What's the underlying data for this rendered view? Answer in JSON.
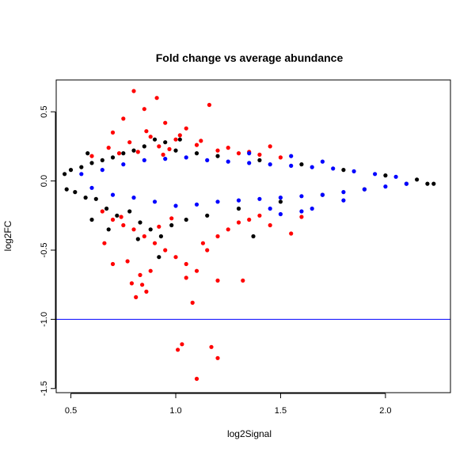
{
  "chart_data": {
    "type": "scatter",
    "title": "Fold change vs average abundance",
    "xlabel": "log2Signal",
    "ylabel": "log2FC",
    "xlim": [
      0.43,
      2.31
    ],
    "ylim": [
      -1.53,
      0.73
    ],
    "xticks": [
      0.5,
      1.0,
      1.5,
      2.0
    ],
    "yticks": [
      -1.5,
      -1.0,
      -0.5,
      0.0,
      0.5
    ],
    "xtick_labels": [
      "0.5",
      "1.0",
      "1.5",
      "2.0"
    ],
    "ytick_labels": [
      "-1.5",
      "-1.0",
      "-0.5",
      "0.0",
      "0.5"
    ],
    "grid": false,
    "legend": "none",
    "reference_line": {
      "y": -1.0,
      "color": "#0000ff"
    },
    "colors": {
      "black": "#000000",
      "blue": "#0000ff",
      "red": "#ff0000"
    },
    "series": [
      {
        "color": "black",
        "points": [
          [
            0.47,
            0.05
          ],
          [
            0.48,
            -0.06
          ],
          [
            0.5,
            0.08
          ],
          [
            0.52,
            -0.08
          ],
          [
            0.55,
            0.1
          ],
          [
            0.57,
            -0.12
          ],
          [
            0.6,
            0.13
          ],
          [
            0.62,
            -0.13
          ],
          [
            0.65,
            0.15
          ],
          [
            0.67,
            -0.2
          ],
          [
            0.7,
            0.17
          ],
          [
            0.72,
            -0.25
          ],
          [
            0.75,
            0.2
          ],
          [
            0.78,
            -0.22
          ],
          [
            0.8,
            0.22
          ],
          [
            0.83,
            -0.3
          ],
          [
            0.85,
            0.25
          ],
          [
            0.88,
            -0.35
          ],
          [
            0.9,
            0.3
          ],
          [
            0.93,
            -0.4
          ],
          [
            0.95,
            0.28
          ],
          [
            0.98,
            -0.32
          ],
          [
            1.0,
            0.22
          ],
          [
            1.05,
            -0.28
          ],
          [
            1.1,
            0.2
          ],
          [
            1.15,
            -0.25
          ],
          [
            1.2,
            0.18
          ],
          [
            1.3,
            -0.2
          ],
          [
            1.4,
            0.15
          ],
          [
            1.5,
            -0.15
          ],
          [
            1.6,
            0.12
          ],
          [
            1.7,
            -0.1
          ],
          [
            1.8,
            0.08
          ],
          [
            1.9,
            -0.06
          ],
          [
            2.0,
            0.04
          ],
          [
            2.1,
            -0.02
          ],
          [
            2.15,
            0.01
          ],
          [
            2.2,
            -0.02
          ],
          [
            2.23,
            -0.02
          ],
          [
            1.37,
            -0.4
          ],
          [
            0.68,
            -0.35
          ],
          [
            0.82,
            -0.42
          ],
          [
            0.92,
            -0.55
          ],
          [
            0.6,
            -0.28
          ],
          [
            0.58,
            0.2
          ],
          [
            1.02,
            0.3
          ]
        ]
      },
      {
        "color": "red",
        "points": [
          [
            0.8,
            0.65
          ],
          [
            0.91,
            0.6
          ],
          [
            1.16,
            0.55
          ],
          [
            0.85,
            0.52
          ],
          [
            0.75,
            0.45
          ],
          [
            0.95,
            0.42
          ],
          [
            1.05,
            0.38
          ],
          [
            0.7,
            0.35
          ],
          [
            0.88,
            0.32
          ],
          [
            1.0,
            0.3
          ],
          [
            0.78,
            0.28
          ],
          [
            1.1,
            0.26
          ],
          [
            0.92,
            0.25
          ],
          [
            0.68,
            0.24
          ],
          [
            1.2,
            0.22
          ],
          [
            0.82,
            0.21
          ],
          [
            1.3,
            0.2
          ],
          [
            1.4,
            0.19
          ],
          [
            0.97,
            0.23
          ],
          [
            0.73,
            0.2
          ],
          [
            1.25,
            0.24
          ],
          [
            0.6,
            0.18
          ],
          [
            1.5,
            0.17
          ],
          [
            1.12,
            0.29
          ],
          [
            0.86,
            0.36
          ],
          [
            1.02,
            0.33
          ],
          [
            0.94,
            0.19
          ],
          [
            1.35,
            0.21
          ],
          [
            1.45,
            0.25
          ],
          [
            0.65,
            -0.22
          ],
          [
            0.7,
            -0.28
          ],
          [
            0.75,
            -0.32
          ],
          [
            0.8,
            -0.35
          ],
          [
            0.85,
            -0.4
          ],
          [
            0.9,
            -0.45
          ],
          [
            0.95,
            -0.5
          ],
          [
            1.0,
            -0.55
          ],
          [
            1.05,
            -0.6
          ],
          [
            1.1,
            -0.65
          ],
          [
            1.15,
            -0.5
          ],
          [
            1.2,
            -0.4
          ],
          [
            1.25,
            -0.35
          ],
          [
            1.3,
            -0.3
          ],
          [
            1.35,
            -0.28
          ],
          [
            1.4,
            -0.25
          ],
          [
            1.45,
            -0.32
          ],
          [
            1.55,
            -0.38
          ],
          [
            1.6,
            -0.26
          ],
          [
            0.7,
            -0.6
          ],
          [
            0.77,
            -0.58
          ],
          [
            0.83,
            -0.68
          ],
          [
            0.88,
            -0.65
          ],
          [
            0.84,
            -0.75
          ],
          [
            0.79,
            -0.74
          ],
          [
            0.86,
            -0.8
          ],
          [
            0.81,
            -0.84
          ],
          [
            1.05,
            -0.7
          ],
          [
            1.2,
            -0.72
          ],
          [
            1.32,
            -0.72
          ],
          [
            1.08,
            -0.88
          ],
          [
            1.01,
            -1.22
          ],
          [
            1.03,
            -1.18
          ],
          [
            1.17,
            -1.2
          ],
          [
            1.2,
            -1.28
          ],
          [
            1.1,
            -1.43
          ],
          [
            0.66,
            -0.45
          ],
          [
            0.92,
            -0.33
          ],
          [
            1.13,
            -0.45
          ],
          [
            0.74,
            -0.26
          ],
          [
            0.98,
            -0.27
          ]
        ]
      },
      {
        "color": "blue",
        "points": [
          [
            0.55,
            0.05
          ],
          [
            0.6,
            -0.05
          ],
          [
            0.65,
            0.08
          ],
          [
            0.7,
            -0.1
          ],
          [
            0.75,
            0.12
          ],
          [
            0.8,
            -0.12
          ],
          [
            0.85,
            0.15
          ],
          [
            0.9,
            -0.15
          ],
          [
            0.95,
            0.16
          ],
          [
            1.0,
            -0.18
          ],
          [
            1.05,
            0.17
          ],
          [
            1.1,
            -0.17
          ],
          [
            1.15,
            0.15
          ],
          [
            1.2,
            -0.15
          ],
          [
            1.25,
            0.14
          ],
          [
            1.3,
            -0.14
          ],
          [
            1.35,
            0.13
          ],
          [
            1.4,
            -0.13
          ],
          [
            1.45,
            0.12
          ],
          [
            1.5,
            -0.12
          ],
          [
            1.55,
            0.11
          ],
          [
            1.6,
            -0.11
          ],
          [
            1.65,
            0.1
          ],
          [
            1.7,
            -0.1
          ],
          [
            1.75,
            0.09
          ],
          [
            1.8,
            -0.08
          ],
          [
            1.85,
            0.07
          ],
          [
            1.9,
            -0.06
          ],
          [
            1.95,
            0.05
          ],
          [
            2.0,
            -0.04
          ],
          [
            2.05,
            0.03
          ],
          [
            2.1,
            -0.02
          ],
          [
            1.6,
            -0.22
          ],
          [
            1.65,
            -0.2
          ],
          [
            1.7,
            0.14
          ],
          [
            1.8,
            -0.14
          ],
          [
            1.55,
            0.18
          ],
          [
            1.45,
            -0.2
          ],
          [
            1.35,
            0.2
          ],
          [
            1.5,
            -0.24
          ]
        ]
      }
    ]
  }
}
